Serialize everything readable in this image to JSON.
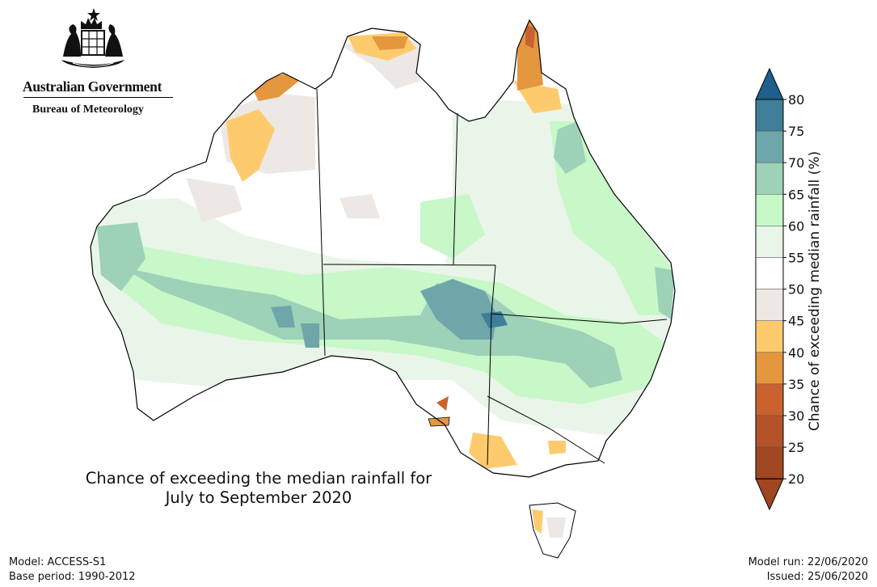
{
  "logo": {
    "government": "Australian Government",
    "bureau": "Bureau of Meteorology"
  },
  "map": {
    "title_line1": "Chance of exceeding the median rainfall for",
    "title_line2": "July to September 2020",
    "region": "Australia"
  },
  "colorbar": {
    "label": "Chance of exceeding median rainfall (%)",
    "ticks": [
      "80",
      "75",
      "70",
      "65",
      "60",
      "55",
      "50",
      "45",
      "40",
      "35",
      "30",
      "25",
      "20"
    ],
    "colors": [
      "#1f5f8b",
      "#3e7e99",
      "#6fa6aa",
      "#9dd1b8",
      "#c8f7c8",
      "#e9f5e9",
      "#ffffff",
      "#ede8e4",
      "#fdcb6e",
      "#e4973f",
      "#c9622f",
      "#b4532a",
      "#a04623"
    ]
  },
  "footer": {
    "model": "Model: ACCESS-S1",
    "base_period": "Base period: 1990-2012",
    "model_run": "Model run: 22/06/2020",
    "issued": "Issued: 25/06/2020"
  }
}
